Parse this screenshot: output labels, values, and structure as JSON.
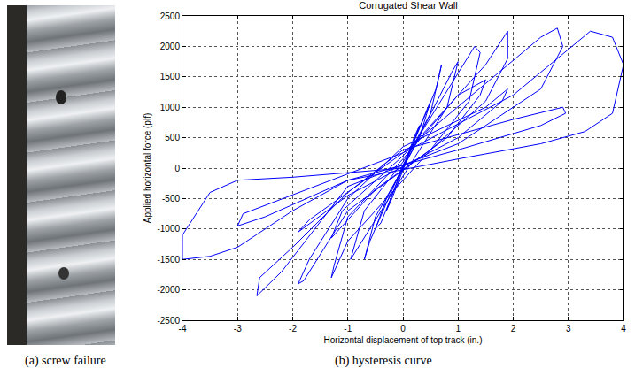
{
  "chart_data": {
    "type": "line",
    "title": "Corrugated Shear Wall",
    "x_label": "Horizontal displacement of top track (in.)",
    "y_label": "Applied horizontal force (plf)",
    "xlim": [
      -4,
      4
    ],
    "xticks": [
      -4,
      -3,
      -2,
      -1,
      0,
      1,
      2,
      3,
      4
    ],
    "ylim": [
      -2500,
      2500
    ],
    "yticks": [
      -2500,
      -2000,
      -1500,
      -1000,
      -500,
      0,
      500,
      1000,
      1500,
      2000,
      2500
    ],
    "grid": true,
    "series": [
      {
        "color": "#0000ff",
        "x": [
          0,
          0.2,
          0.3,
          0.1,
          -0.2,
          -0.3,
          -0.1,
          0.4,
          0.5,
          0.3,
          0,
          -0.4,
          -0.5,
          -0.3,
          0,
          0.6,
          0.7,
          0.5,
          0,
          -0.6,
          -0.7,
          -0.5,
          0,
          0.9,
          1.0,
          0.8,
          0.3,
          -0.8,
          -0.95,
          -0.7,
          0,
          1.3,
          1.4,
          1.2,
          0.5,
          -1.0,
          -1.3,
          -1.25,
          -1.0,
          0,
          1.0,
          1.5,
          1.4,
          0.8,
          -0.5,
          -1.3,
          -1.1,
          0,
          1.5,
          1.9,
          1.9,
          1.5,
          0.5,
          -1.0,
          -1.8,
          -1.9,
          -1.7,
          -1.0,
          0,
          1.5,
          1.9,
          1.8,
          1.0,
          -1.0,
          -1.9,
          -1.7,
          0,
          2.5,
          2.8,
          2.9,
          2.5,
          1.0,
          -1.0,
          -2.2,
          -2.65,
          -2.6,
          -2.0,
          -1.0,
          0,
          2.0,
          2.9,
          2.95,
          2.5,
          1.0,
          -1.0,
          -2.5,
          -3.0,
          -2.9,
          -1.0,
          0,
          2.0,
          3.2,
          3.4,
          3.8,
          4.0,
          3.8,
          3.3,
          2.5,
          1.0,
          -1.0,
          -2.0,
          -3.0,
          -3.5,
          -4.0,
          -4.0,
          -3.5,
          -3.0,
          -2.0,
          -1.0,
          0
        ],
        "values": [
          0,
          500,
          700,
          200,
          -500,
          -700,
          -200,
          900,
          1100,
          500,
          0,
          -900,
          -1000,
          -500,
          0,
          1300,
          1700,
          900,
          50,
          -1200,
          -1500,
          -800,
          0,
          1600,
          1750,
          1000,
          300,
          -1300,
          -1500,
          -700,
          100,
          2000,
          1900,
          1100,
          300,
          -1200,
          -1800,
          -1600,
          -800,
          150,
          1200,
          1450,
          1200,
          500,
          -350,
          -1150,
          -700,
          200,
          1700,
          2250,
          1800,
          1100,
          300,
          -700,
          -1850,
          -1900,
          -1500,
          -500,
          350,
          1000,
          1300,
          1100,
          500,
          -450,
          -1050,
          -850,
          250,
          2150,
          2300,
          2000,
          1300,
          400,
          -300,
          -1700,
          -2100,
          -1800,
          -1300,
          -400,
          300,
          800,
          1000,
          900,
          700,
          300,
          -200,
          -800,
          -950,
          -750,
          -100,
          250,
          1200,
          2100,
          2250,
          2150,
          1700,
          900,
          600,
          400,
          150,
          -200,
          -700,
          -1300,
          -1450,
          -1500,
          -1100,
          -400,
          -200,
          -150,
          -80,
          0
        ]
      }
    ]
  },
  "captions": [
    "(a) screw failure",
    "(b) hysteresis curve"
  ]
}
